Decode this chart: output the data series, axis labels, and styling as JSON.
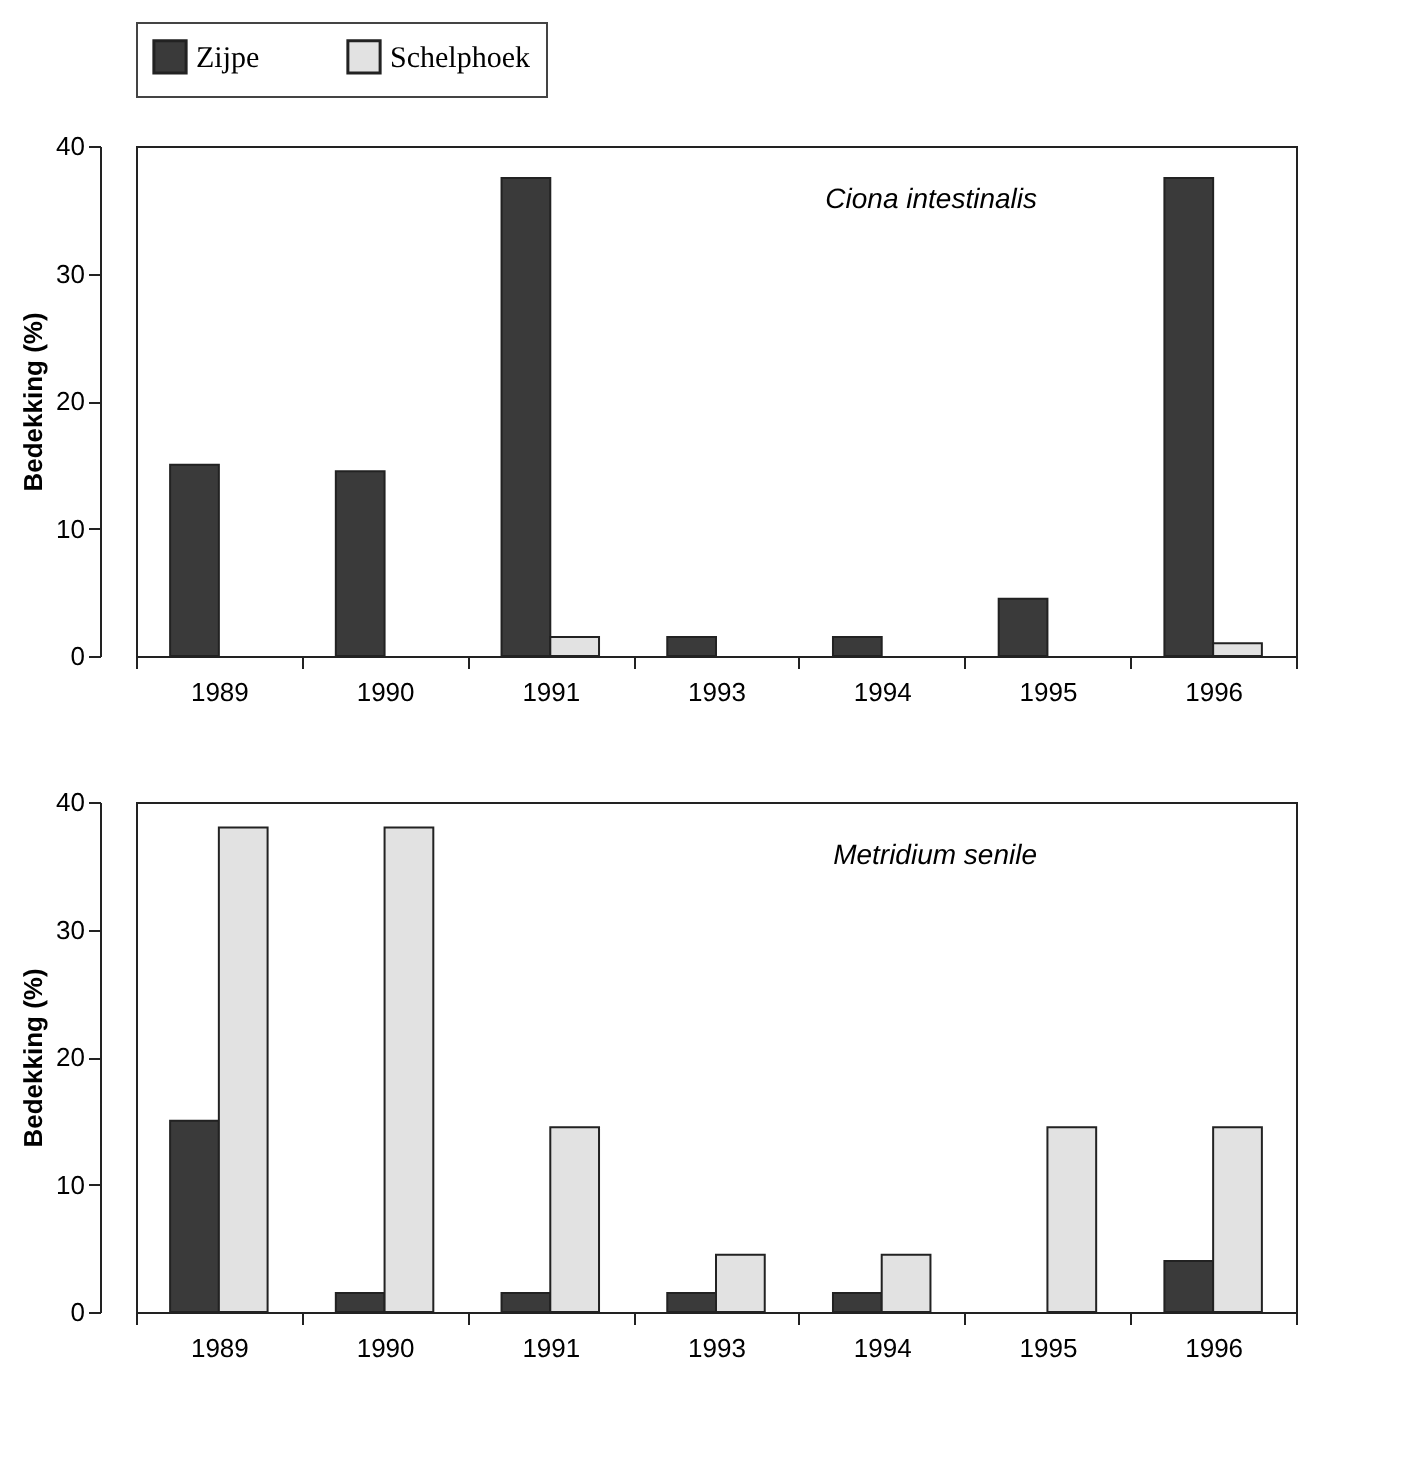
{
  "chart_data": [
    {
      "type": "bar",
      "title": "Ciona intestinalis",
      "ylabel": "Bedekking (%)",
      "categories": [
        "1989",
        "1990",
        "1991",
        "1993",
        "1994",
        "1995",
        "1996"
      ],
      "ylim": [
        0,
        40
      ],
      "yticks": [
        0,
        10,
        20,
        30,
        40
      ],
      "grid": false,
      "legend": "top",
      "series": [
        {
          "name": "Zijpe",
          "color": "#3a3a3a",
          "values": [
            15,
            14.5,
            37.5,
            1.5,
            1.5,
            4.5,
            37.5
          ]
        },
        {
          "name": "Schelphoek",
          "color": "#e2e2e2",
          "values": [
            0,
            0,
            1.5,
            0,
            0,
            0,
            1
          ]
        }
      ]
    },
    {
      "type": "bar",
      "title": "Metridium senile",
      "ylabel": "Bedekking (%)",
      "categories": [
        "1989",
        "1990",
        "1991",
        "1993",
        "1994",
        "1995",
        "1996"
      ],
      "ylim": [
        0,
        40
      ],
      "yticks": [
        0,
        10,
        20,
        30,
        40
      ],
      "grid": false,
      "legend": "top",
      "series": [
        {
          "name": "Zijpe",
          "color": "#3a3a3a",
          "values": [
            15,
            1.5,
            1.5,
            1.5,
            1.5,
            0,
            4
          ]
        },
        {
          "name": "Schelphoek",
          "color": "#e2e2e2",
          "values": [
            38,
            38,
            14.5,
            4.5,
            4.5,
            14.5,
            14.5
          ]
        }
      ]
    }
  ]
}
